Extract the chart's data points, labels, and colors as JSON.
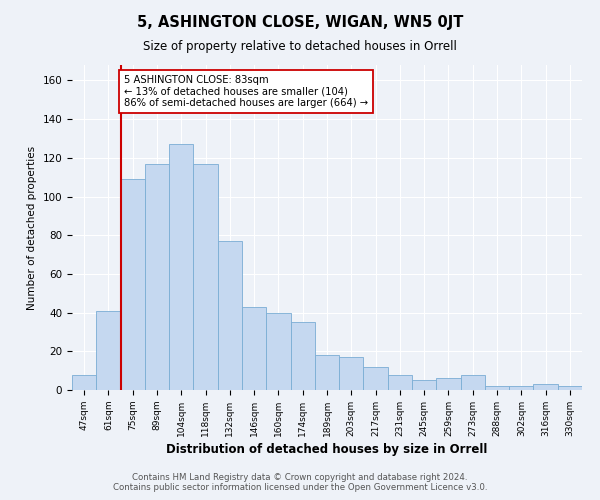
{
  "title": "5, ASHINGTON CLOSE, WIGAN, WN5 0JT",
  "subtitle": "Size of property relative to detached houses in Orrell",
  "xlabel": "Distribution of detached houses by size in Orrell",
  "ylabel": "Number of detached properties",
  "footer_line1": "Contains HM Land Registry data © Crown copyright and database right 2024.",
  "footer_line2": "Contains public sector information licensed under the Open Government Licence v3.0.",
  "categories": [
    "47sqm",
    "61sqm",
    "75sqm",
    "89sqm",
    "104sqm",
    "118sqm",
    "132sqm",
    "146sqm",
    "160sqm",
    "174sqm",
    "189sqm",
    "203sqm",
    "217sqm",
    "231sqm",
    "245sqm",
    "259sqm",
    "273sqm",
    "288sqm",
    "302sqm",
    "316sqm",
    "330sqm"
  ],
  "values": [
    8,
    41,
    109,
    117,
    127,
    117,
    77,
    43,
    40,
    35,
    18,
    17,
    12,
    8,
    5,
    6,
    8,
    2,
    2,
    3,
    2
  ],
  "bar_color": "#c5d8f0",
  "bar_edge_color": "#7aadd4",
  "vline_x_index": 1.5,
  "property_line_label": "5 ASHINGTON CLOSE: 83sqm",
  "annotation_line1": "← 13% of detached houses are smaller (104)",
  "annotation_line2": "86% of semi-detached houses are larger (664) →",
  "vline_color": "#cc0000",
  "ylim": [
    0,
    168
  ],
  "yticks": [
    0,
    20,
    40,
    60,
    80,
    100,
    120,
    140,
    160
  ],
  "background_color": "#eef2f8",
  "grid_color": "#ffffff"
}
